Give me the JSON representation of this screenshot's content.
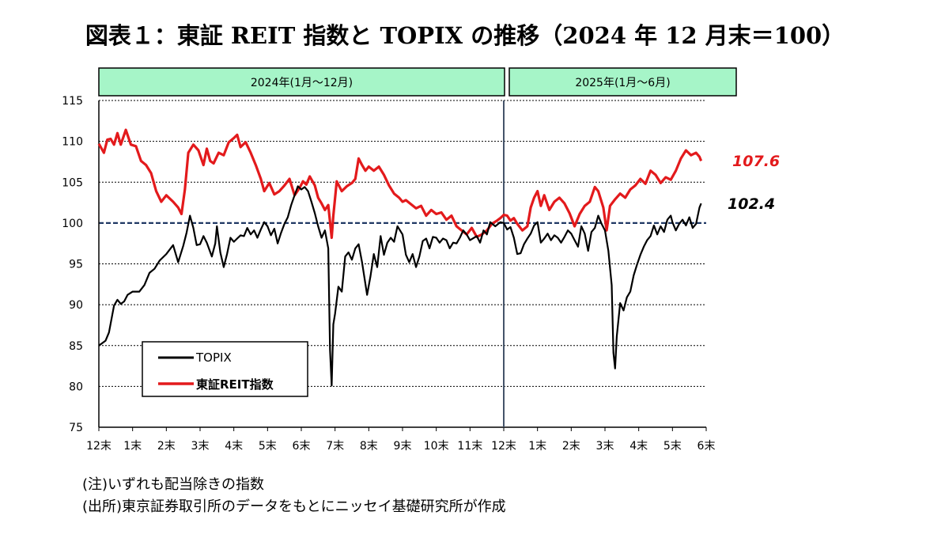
{
  "title": "図表１：東証 REIT 指数と TOPIX の推移（2024 年 12 月末＝100）",
  "notes": {
    "note1": "(注)いずれも配当除きの指数",
    "note2": "(出所)東京証券取引所のデータをもとにニッセイ基礎研究所が作成"
  },
  "colors": {
    "reit": "#e31a1c",
    "topix": "#000000",
    "period_bg": "#a6f5c8",
    "baseline": "#1f3864"
  },
  "chart_data": {
    "type": "line",
    "periods": [
      "2024年(1月～12月)",
      "2025年(1月～6月)"
    ],
    "x_labels": [
      "12末",
      "1末",
      "2末",
      "3末",
      "4末",
      "5末",
      "6末",
      "7末",
      "8末",
      "9末",
      "10末",
      "11末",
      "12末",
      "1末",
      "2末",
      "3末",
      "4末",
      "5末",
      "6末"
    ],
    "divider_at": "12末",
    "ylim": [
      75,
      115
    ],
    "yticks": [
      75,
      80,
      85,
      90,
      95,
      100,
      105,
      110,
      115
    ],
    "grid": true,
    "baseline": 100,
    "legend_position": "bottom-left",
    "series": [
      {
        "name": "TOPIX",
        "end_label": "102.4",
        "points": [
          [
            0,
            85
          ],
          [
            0.2,
            85.6
          ],
          [
            0.3,
            86.6
          ],
          [
            0.45,
            89.9
          ],
          [
            0.55,
            90.6
          ],
          [
            0.65,
            90.1
          ],
          [
            0.75,
            90.4
          ],
          [
            0.85,
            91.2
          ],
          [
            1,
            91.6
          ],
          [
            1.2,
            91.6
          ],
          [
            1.35,
            92.4
          ],
          [
            1.5,
            93.9
          ],
          [
            1.65,
            94.4
          ],
          [
            1.8,
            95.4
          ],
          [
            2,
            96.2
          ],
          [
            2.2,
            97.3
          ],
          [
            2.35,
            95.2
          ],
          [
            2.5,
            97.2
          ],
          [
            2.6,
            98.8
          ],
          [
            2.7,
            100.9
          ],
          [
            2.8,
            99.4
          ],
          [
            2.9,
            97.3
          ],
          [
            3,
            97.4
          ],
          [
            3.1,
            98.4
          ],
          [
            3.2,
            97.6
          ],
          [
            3.35,
            95.9
          ],
          [
            3.45,
            97.5
          ],
          [
            3.5,
            99.6
          ],
          [
            3.6,
            96.4
          ],
          [
            3.7,
            94.6
          ],
          [
            3.8,
            96.2
          ],
          [
            3.9,
            98.2
          ],
          [
            4,
            97.7
          ],
          [
            4.1,
            98.1
          ],
          [
            4.2,
            98.5
          ],
          [
            4.3,
            98.4
          ],
          [
            4.4,
            99.4
          ],
          [
            4.5,
            98.6
          ],
          [
            4.6,
            99.1
          ],
          [
            4.7,
            98.2
          ],
          [
            4.8,
            99.2
          ],
          [
            4.9,
            100.1
          ],
          [
            5,
            99.6
          ],
          [
            5.1,
            98.5
          ],
          [
            5.2,
            99.3
          ],
          [
            5.3,
            97.5
          ],
          [
            5.4,
            98.8
          ],
          [
            5.5,
            99.9
          ],
          [
            5.6,
            100.7
          ],
          [
            5.7,
            102.2
          ],
          [
            5.8,
            103.4
          ],
          [
            5.9,
            104.5
          ],
          [
            6,
            104.1
          ],
          [
            6.1,
            104.4
          ],
          [
            6.2,
            103.9
          ],
          [
            6.3,
            102.6
          ],
          [
            6.4,
            101.2
          ],
          [
            6.5,
            99.6
          ],
          [
            6.6,
            98.2
          ],
          [
            6.7,
            99.1
          ],
          [
            6.8,
            96.9
          ],
          [
            6.85,
            84.5
          ],
          [
            6.9,
            80.1
          ],
          [
            6.95,
            87.6
          ],
          [
            7,
            88.9
          ],
          [
            7.1,
            92.2
          ],
          [
            7.2,
            91.6
          ],
          [
            7.3,
            95.9
          ],
          [
            7.4,
            96.4
          ],
          [
            7.5,
            95.5
          ],
          [
            7.6,
            96.9
          ],
          [
            7.7,
            97.4
          ],
          [
            7.8,
            95.2
          ],
          [
            7.85,
            93.9
          ],
          [
            7.95,
            91.2
          ],
          [
            8.05,
            93.5
          ],
          [
            8.15,
            96.2
          ],
          [
            8.25,
            94.6
          ],
          [
            8.35,
            98.4
          ],
          [
            8.45,
            96.1
          ],
          [
            8.55,
            97.6
          ],
          [
            8.65,
            98.2
          ],
          [
            8.75,
            97.7
          ],
          [
            8.85,
            99.6
          ],
          [
            9,
            98.6
          ],
          [
            9.1,
            96.1
          ],
          [
            9.2,
            95.2
          ],
          [
            9.3,
            96.2
          ],
          [
            9.4,
            94.6
          ],
          [
            9.5,
            95.9
          ],
          [
            9.6,
            97.8
          ],
          [
            9.7,
            98.1
          ],
          [
            9.8,
            96.9
          ],
          [
            9.9,
            98.3
          ],
          [
            10,
            98.2
          ],
          [
            10.1,
            97.6
          ],
          [
            10.2,
            98.1
          ],
          [
            10.3,
            97.9
          ],
          [
            10.4,
            96.9
          ],
          [
            10.5,
            97.6
          ],
          [
            10.6,
            97.5
          ],
          [
            10.7,
            98.2
          ],
          [
            10.8,
            99.1
          ],
          [
            10.9,
            98.6
          ],
          [
            11,
            97.9
          ],
          [
            11.2,
            98.4
          ],
          [
            11.3,
            97.6
          ],
          [
            11.4,
            99.1
          ],
          [
            11.5,
            98.6
          ],
          [
            11.6,
            100.1
          ],
          [
            11.75,
            99.6
          ],
          [
            11.9,
            100.1
          ],
          [
            12,
            100
          ],
          [
            12.1,
            99.2
          ],
          [
            12.2,
            99.5
          ],
          [
            12.3,
            98.2
          ],
          [
            12.4,
            96.2
          ],
          [
            12.5,
            96.3
          ],
          [
            12.6,
            97.4
          ],
          [
            12.7,
            98.1
          ],
          [
            12.8,
            98.7
          ],
          [
            12.9,
            99.7
          ],
          [
            13,
            100.1
          ],
          [
            13.1,
            97.6
          ],
          [
            13.2,
            98.1
          ],
          [
            13.3,
            98.7
          ],
          [
            13.4,
            97.9
          ],
          [
            13.5,
            98.5
          ],
          [
            13.6,
            98.2
          ],
          [
            13.7,
            97.6
          ],
          [
            13.8,
            98.3
          ],
          [
            13.9,
            99.1
          ],
          [
            14,
            98.7
          ],
          [
            14.1,
            97.9
          ],
          [
            14.2,
            97.1
          ],
          [
            14.3,
            99.6
          ],
          [
            14.4,
            98.7
          ],
          [
            14.5,
            96.6
          ],
          [
            14.6,
            98.9
          ],
          [
            14.7,
            99.4
          ],
          [
            14.8,
            100.9
          ],
          [
            14.9,
            99.9
          ],
          [
            15,
            99.1
          ],
          [
            15.1,
            96.6
          ],
          [
            15.2,
            92.4
          ],
          [
            15.25,
            84.1
          ],
          [
            15.3,
            82.2
          ],
          [
            15.35,
            86.1
          ],
          [
            15.45,
            90.2
          ],
          [
            15.55,
            89.3
          ],
          [
            15.65,
            90.9
          ],
          [
            15.75,
            91.6
          ],
          [
            15.85,
            93.6
          ],
          [
            15.95,
            94.9
          ],
          [
            16.05,
            96.1
          ],
          [
            16.15,
            97.1
          ],
          [
            16.25,
            97.9
          ],
          [
            16.35,
            98.4
          ],
          [
            16.45,
            99.7
          ],
          [
            16.55,
            98.6
          ],
          [
            16.65,
            99.6
          ],
          [
            16.75,
            98.9
          ],
          [
            16.85,
            100.4
          ],
          [
            16.95,
            100.9
          ],
          [
            17,
            100.1
          ],
          [
            17.1,
            99.1
          ],
          [
            17.2,
            99.9
          ],
          [
            17.3,
            100.4
          ],
          [
            17.4,
            99.7
          ],
          [
            17.5,
            100.7
          ],
          [
            17.6,
            99.4
          ],
          [
            17.7,
            99.9
          ],
          [
            17.8,
            101.9
          ],
          [
            17.85,
            102.4
          ]
        ]
      },
      {
        "name": "東証REIT指数",
        "end_label": "107.6",
        "points": [
          [
            0,
            109.7
          ],
          [
            0.15,
            108.6
          ],
          [
            0.25,
            110.2
          ],
          [
            0.35,
            110.3
          ],
          [
            0.45,
            109.6
          ],
          [
            0.55,
            111
          ],
          [
            0.65,
            109.6
          ],
          [
            0.8,
            111.4
          ],
          [
            0.95,
            109.6
          ],
          [
            1.1,
            109.4
          ],
          [
            1.25,
            107.6
          ],
          [
            1.4,
            107.1
          ],
          [
            1.55,
            106.1
          ],
          [
            1.7,
            103.9
          ],
          [
            1.85,
            102.6
          ],
          [
            2,
            103.4
          ],
          [
            2.2,
            102.6
          ],
          [
            2.35,
            101.9
          ],
          [
            2.45,
            101.1
          ],
          [
            2.55,
            104.1
          ],
          [
            2.65,
            108.6
          ],
          [
            2.8,
            109.6
          ],
          [
            2.95,
            108.9
          ],
          [
            3.1,
            107.1
          ],
          [
            3.2,
            109.1
          ],
          [
            3.3,
            107.6
          ],
          [
            3.4,
            107.3
          ],
          [
            3.55,
            108.6
          ],
          [
            3.7,
            108.3
          ],
          [
            3.85,
            109.9
          ],
          [
            4,
            110.4
          ],
          [
            4.1,
            110.8
          ],
          [
            4.2,
            109.3
          ],
          [
            4.35,
            109.9
          ],
          [
            4.5,
            108.6
          ],
          [
            4.65,
            107.1
          ],
          [
            4.8,
            105.4
          ],
          [
            4.9,
            103.9
          ],
          [
            5.05,
            104.9
          ],
          [
            5.2,
            103.5
          ],
          [
            5.35,
            103.9
          ],
          [
            5.5,
            104.6
          ],
          [
            5.65,
            105.4
          ],
          [
            5.8,
            103.4
          ],
          [
            5.95,
            104.3
          ],
          [
            6.05,
            105.1
          ],
          [
            6.15,
            104.7
          ],
          [
            6.25,
            105.7
          ],
          [
            6.4,
            104.6
          ],
          [
            6.5,
            103.1
          ],
          [
            6.6,
            102.4
          ],
          [
            6.7,
            101.6
          ],
          [
            6.8,
            102.2
          ],
          [
            6.9,
            98.2
          ],
          [
            6.95,
            100.9
          ],
          [
            7.05,
            105.1
          ],
          [
            7.2,
            103.9
          ],
          [
            7.35,
            104.5
          ],
          [
            7.5,
            104.9
          ],
          [
            7.6,
            105.4
          ],
          [
            7.7,
            107.9
          ],
          [
            7.8,
            107.1
          ],
          [
            7.9,
            106.4
          ],
          [
            8,
            106.9
          ],
          [
            8.15,
            106.4
          ],
          [
            8.3,
            106.9
          ],
          [
            8.45,
            105.9
          ],
          [
            8.6,
            104.6
          ],
          [
            8.75,
            103.6
          ],
          [
            8.9,
            103.1
          ],
          [
            9,
            102.6
          ],
          [
            9.1,
            102.8
          ],
          [
            9.25,
            102.3
          ],
          [
            9.4,
            101.8
          ],
          [
            9.55,
            102.1
          ],
          [
            9.7,
            100.9
          ],
          [
            9.85,
            101.6
          ],
          [
            10,
            101.1
          ],
          [
            10.15,
            101.3
          ],
          [
            10.3,
            100.4
          ],
          [
            10.45,
            100.9
          ],
          [
            10.6,
            99.6
          ],
          [
            10.75,
            99.1
          ],
          [
            10.9,
            98.6
          ],
          [
            11.05,
            99.4
          ],
          [
            11.2,
            98.3
          ],
          [
            11.35,
            98.6
          ],
          [
            11.5,
            99.1
          ],
          [
            11.65,
            99.9
          ],
          [
            11.8,
            100.3
          ],
          [
            11.9,
            100.6
          ],
          [
            12,
            101
          ],
          [
            12.1,
            100.9
          ],
          [
            12.2,
            100.3
          ],
          [
            12.3,
            100.6
          ],
          [
            12.4,
            99.9
          ],
          [
            12.55,
            99.1
          ],
          [
            12.7,
            99.6
          ],
          [
            12.8,
            101.9
          ],
          [
            12.9,
            103.1
          ],
          [
            13,
            103.9
          ],
          [
            13.1,
            102.1
          ],
          [
            13.2,
            103.4
          ],
          [
            13.35,
            101.6
          ],
          [
            13.5,
            102.6
          ],
          [
            13.65,
            103.1
          ],
          [
            13.8,
            102.4
          ],
          [
            13.95,
            101.2
          ],
          [
            14.1,
            99.6
          ],
          [
            14.25,
            101.1
          ],
          [
            14.4,
            102.1
          ],
          [
            14.55,
            102.6
          ],
          [
            14.7,
            104.4
          ],
          [
            14.8,
            103.9
          ],
          [
            14.95,
            101.9
          ],
          [
            15.05,
            99.1
          ],
          [
            15.15,
            102.1
          ],
          [
            15.3,
            102.9
          ],
          [
            15.45,
            103.6
          ],
          [
            15.6,
            103.1
          ],
          [
            15.75,
            104.1
          ],
          [
            15.9,
            104.6
          ],
          [
            16.05,
            105.4
          ],
          [
            16.2,
            104.8
          ],
          [
            16.35,
            106.4
          ],
          [
            16.5,
            105.9
          ],
          [
            16.65,
            104.9
          ],
          [
            16.8,
            105.6
          ],
          [
            16.95,
            105.3
          ],
          [
            17.1,
            106.4
          ],
          [
            17.25,
            107.9
          ],
          [
            17.4,
            108.9
          ],
          [
            17.55,
            108.3
          ],
          [
            17.7,
            108.6
          ],
          [
            17.8,
            108.1
          ],
          [
            17.85,
            107.6
          ]
        ]
      }
    ]
  }
}
